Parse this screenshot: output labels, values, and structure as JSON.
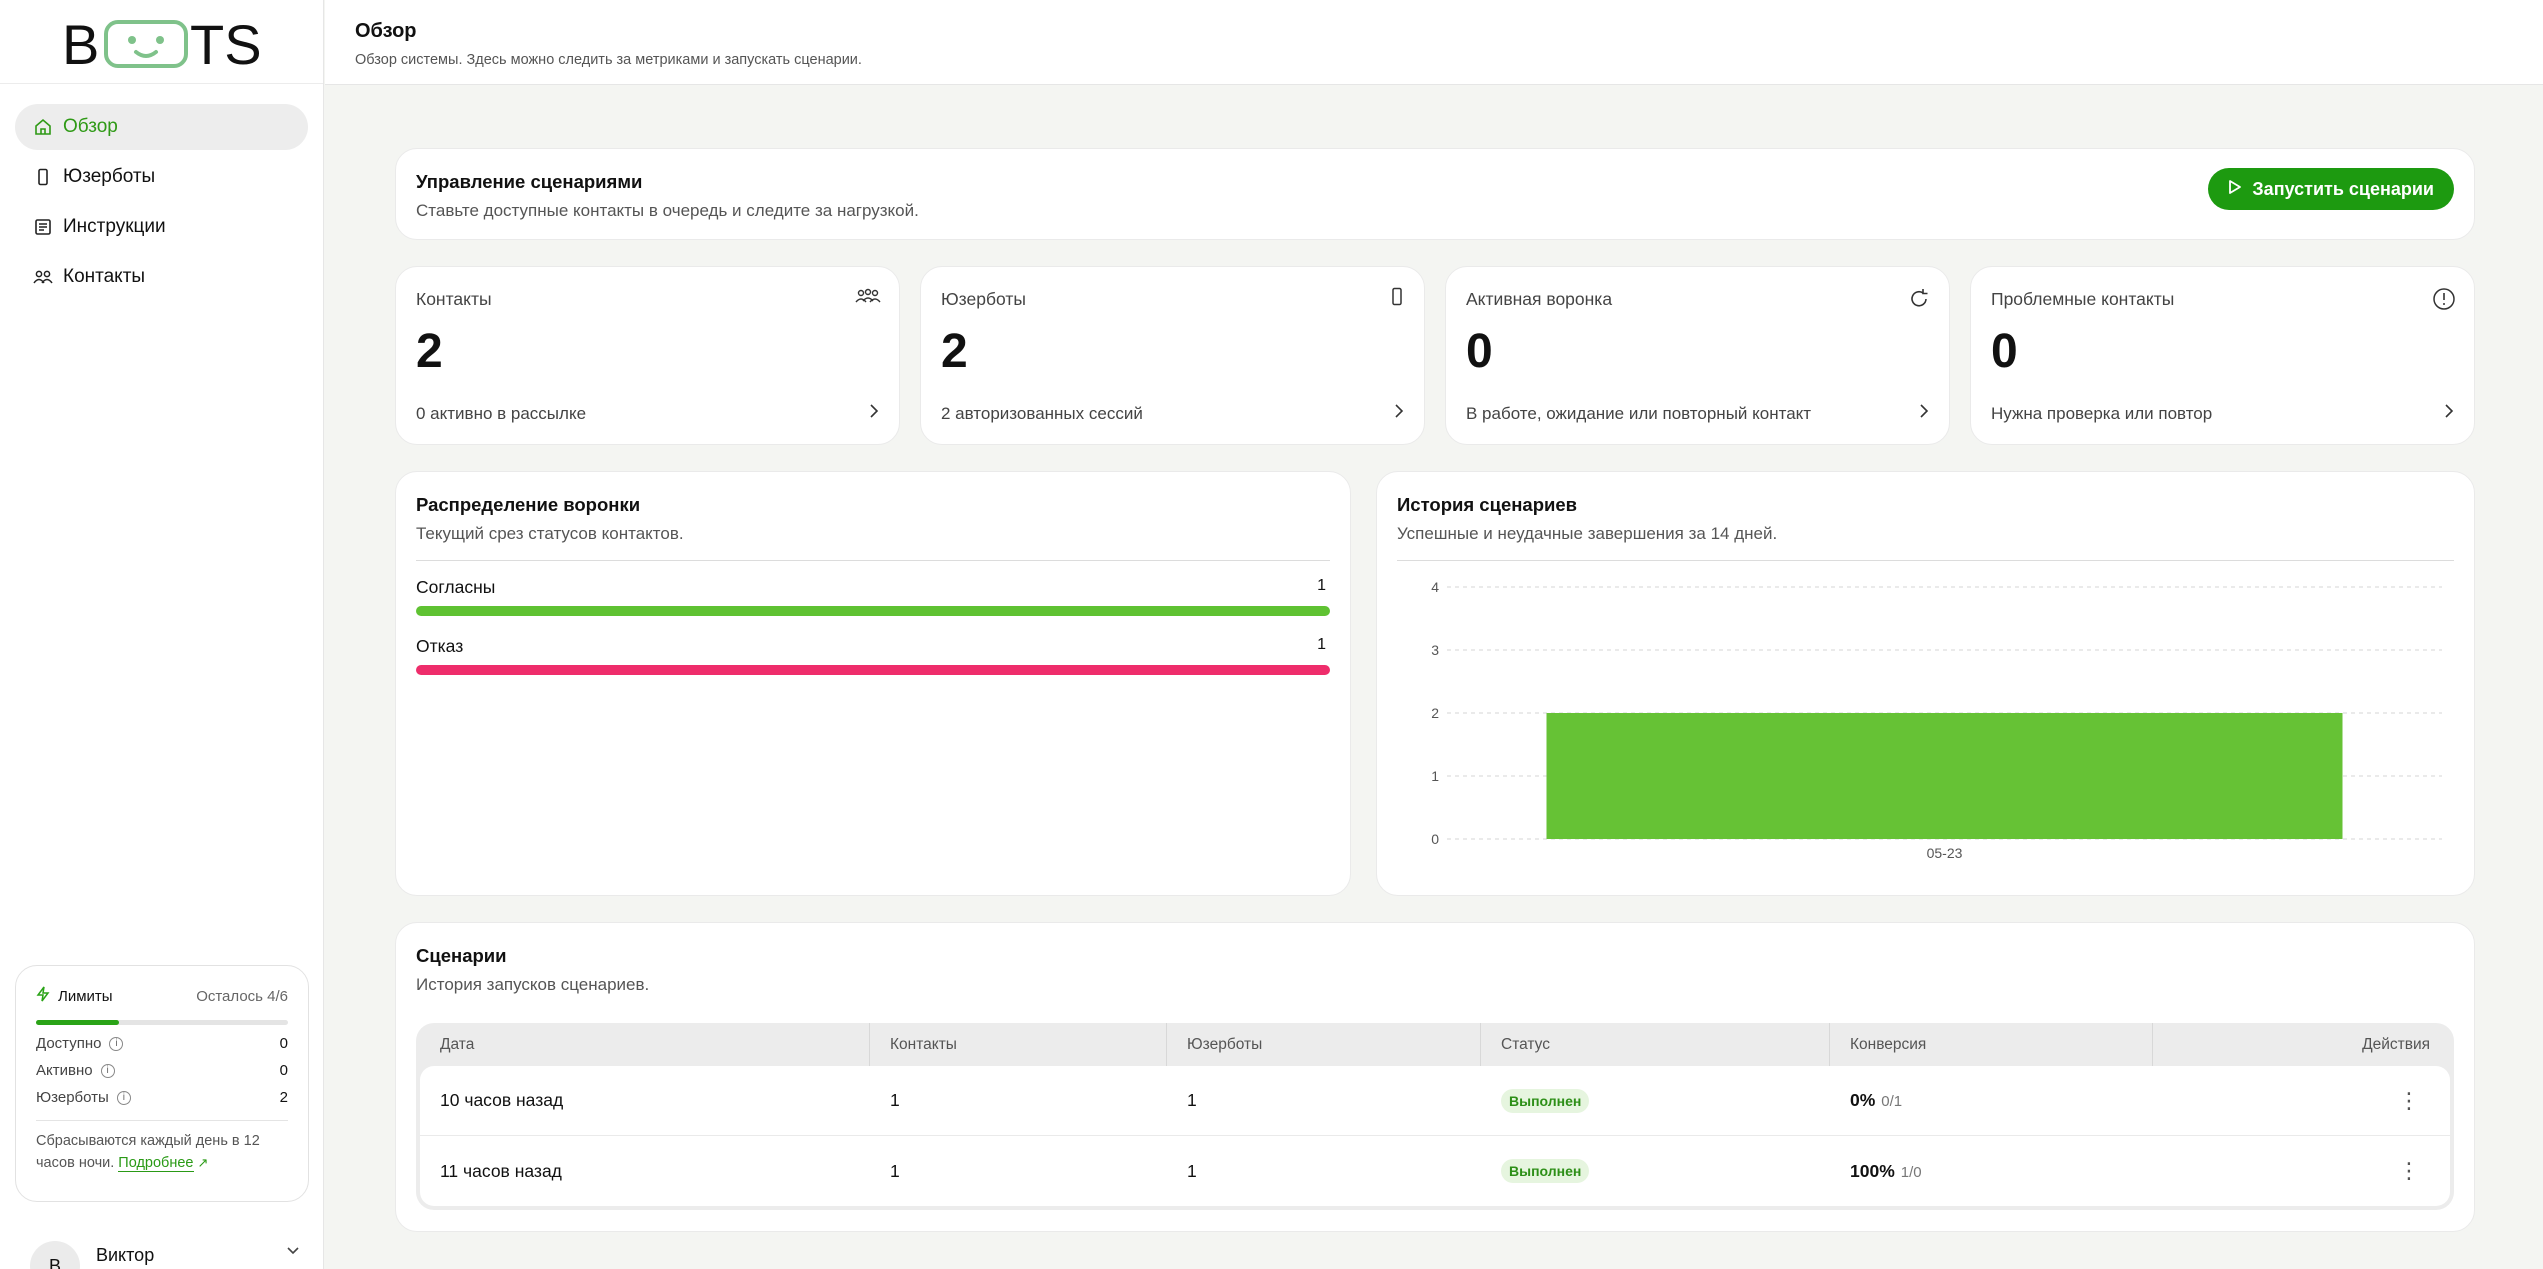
{
  "app": {
    "logo_text": "BOOTS"
  },
  "sidebar": {
    "items": [
      {
        "label": "Обзор",
        "icon": "home-icon",
        "active": true
      },
      {
        "label": "Юзерботы",
        "icon": "phone-icon",
        "active": false
      },
      {
        "label": "Инструкции",
        "icon": "document-icon",
        "active": false
      },
      {
        "label": "Контакты",
        "icon": "people-icon",
        "active": false
      }
    ],
    "limits": {
      "title": "Лимиты",
      "remaining": "Осталось 4/6",
      "progress": 0.33,
      "rows": [
        {
          "label": "Доступно",
          "value": "0"
        },
        {
          "label": "Активно",
          "value": "0"
        },
        {
          "label": "Юзерботы",
          "value": "2"
        }
      ],
      "note": "Сбрасываются каждый день в 12 часов ночи.",
      "link": "Подробнее"
    },
    "user": {
      "initial": "В",
      "name": "Виктор"
    }
  },
  "header": {
    "title": "Обзор",
    "subtitle": "Обзор системы. Здесь можно следить за метриками и запускать сценарии."
  },
  "management": {
    "title": "Управление сценариями",
    "subtitle": "Ставьте доступные контакты в очередь и следите за нагрузкой.",
    "run_button": "Запустить сценарии"
  },
  "stats": [
    {
      "label": "Контакты",
      "value": "2",
      "foot": "0 активно в рассылке",
      "icon": "people-icon"
    },
    {
      "label": "Юзерботы",
      "value": "2",
      "foot": "2 авторизованных сессий",
      "icon": "phone-icon"
    },
    {
      "label": "Активная воронка",
      "value": "0",
      "foot": "В работе, ожидание или повторный контакт",
      "icon": "refresh-icon"
    },
    {
      "label": "Проблемные контакты",
      "value": "0",
      "foot": "Нужна проверка или повтор",
      "icon": "alert-icon"
    }
  ],
  "funnel": {
    "title": "Распределение воронки",
    "subtitle": "Текущий срез статусов контактов.",
    "rows": [
      {
        "label": "Согласны",
        "count": "1",
        "color": "#5fc232"
      },
      {
        "label": "Отказ",
        "count": "1",
        "color": "#ee2d6b"
      }
    ]
  },
  "history": {
    "title": "История сценариев",
    "subtitle": "Успешные и неудачные завершения за 14 дней."
  },
  "chart_data": {
    "type": "bar",
    "categories": [
      "05-23"
    ],
    "values": [
      2
    ],
    "ylim": [
      0,
      4
    ],
    "yticks": [
      "0",
      "1",
      "2",
      "3",
      "4"
    ],
    "grid": true,
    "color": "#66c235"
  },
  "scenarios": {
    "title": "Сценарии",
    "subtitle": "История запусков сценариев.",
    "columns": [
      "Дата",
      "Контакты",
      "Юзерботы",
      "Статус",
      "Конверсия",
      "Действия"
    ],
    "rows": [
      {
        "date": "10 часов назад",
        "contacts": "1",
        "userbots": "1",
        "status": "Выполнен",
        "conv": "0%",
        "conv_detail": "0/1"
      },
      {
        "date": "11 часов назад",
        "contacts": "1",
        "userbots": "1",
        "status": "Выполнен",
        "conv": "100%",
        "conv_detail": "1/0"
      }
    ]
  }
}
